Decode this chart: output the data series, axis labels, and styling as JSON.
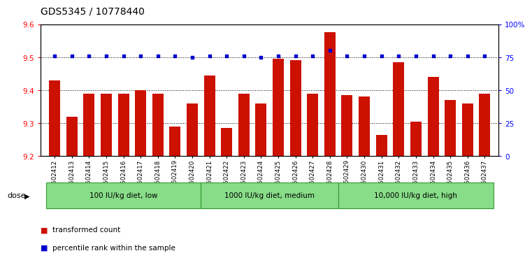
{
  "title": "GDS5345 / 10778440",
  "samples": [
    "GSM1502412",
    "GSM1502413",
    "GSM1502414",
    "GSM1502415",
    "GSM1502416",
    "GSM1502417",
    "GSM1502418",
    "GSM1502419",
    "GSM1502420",
    "GSM1502421",
    "GSM1502422",
    "GSM1502423",
    "GSM1502424",
    "GSM1502425",
    "GSM1502426",
    "GSM1502427",
    "GSM1502428",
    "GSM1502429",
    "GSM1502430",
    "GSM1502431",
    "GSM1502432",
    "GSM1502433",
    "GSM1502434",
    "GSM1502435",
    "GSM1502436",
    "GSM1502437"
  ],
  "bar_values": [
    9.43,
    9.32,
    9.39,
    9.39,
    9.39,
    9.4,
    9.39,
    9.29,
    9.36,
    9.445,
    9.285,
    9.39,
    9.36,
    9.495,
    9.49,
    9.39,
    9.575,
    9.385,
    9.38,
    9.265,
    9.485,
    9.305,
    9.44,
    9.37,
    9.36,
    9.39
  ],
  "percentile_values": [
    76,
    76,
    76,
    76,
    76,
    76,
    76,
    76,
    75,
    76,
    76,
    76,
    75,
    76,
    76,
    76,
    80,
    76,
    76,
    76,
    76,
    76,
    76,
    76,
    76,
    76
  ],
  "bar_color": "#cc1100",
  "percentile_color": "#0000cc",
  "ylim_left": [
    9.2,
    9.6
  ],
  "ylim_right": [
    0,
    100
  ],
  "yticks_left": [
    9.2,
    9.3,
    9.4,
    9.5,
    9.6
  ],
  "yticks_right": [
    0,
    25,
    50,
    75,
    100
  ],
  "ytick_labels_right": [
    "0",
    "25",
    "50",
    "75",
    "100%"
  ],
  "groups": [
    {
      "label": "100 IU/kg diet, low",
      "start": 0,
      "end": 8
    },
    {
      "label": "1000 IU/kg diet, medium",
      "start": 9,
      "end": 16
    },
    {
      "label": "10,000 IU/kg diet, high",
      "start": 17,
      "end": 25
    }
  ],
  "group_color": "#88dd88",
  "group_border_color": "#339933",
  "dose_label": "dose",
  "legend_items": [
    {
      "label": "transformed count",
      "color": "#cc1100"
    },
    {
      "label": "percentile rank within the sample",
      "color": "#0000cc"
    }
  ],
  "plot_bg_color": "#ffffff",
  "title_fontsize": 10,
  "tick_fontsize": 7.5,
  "bar_width": 0.65
}
